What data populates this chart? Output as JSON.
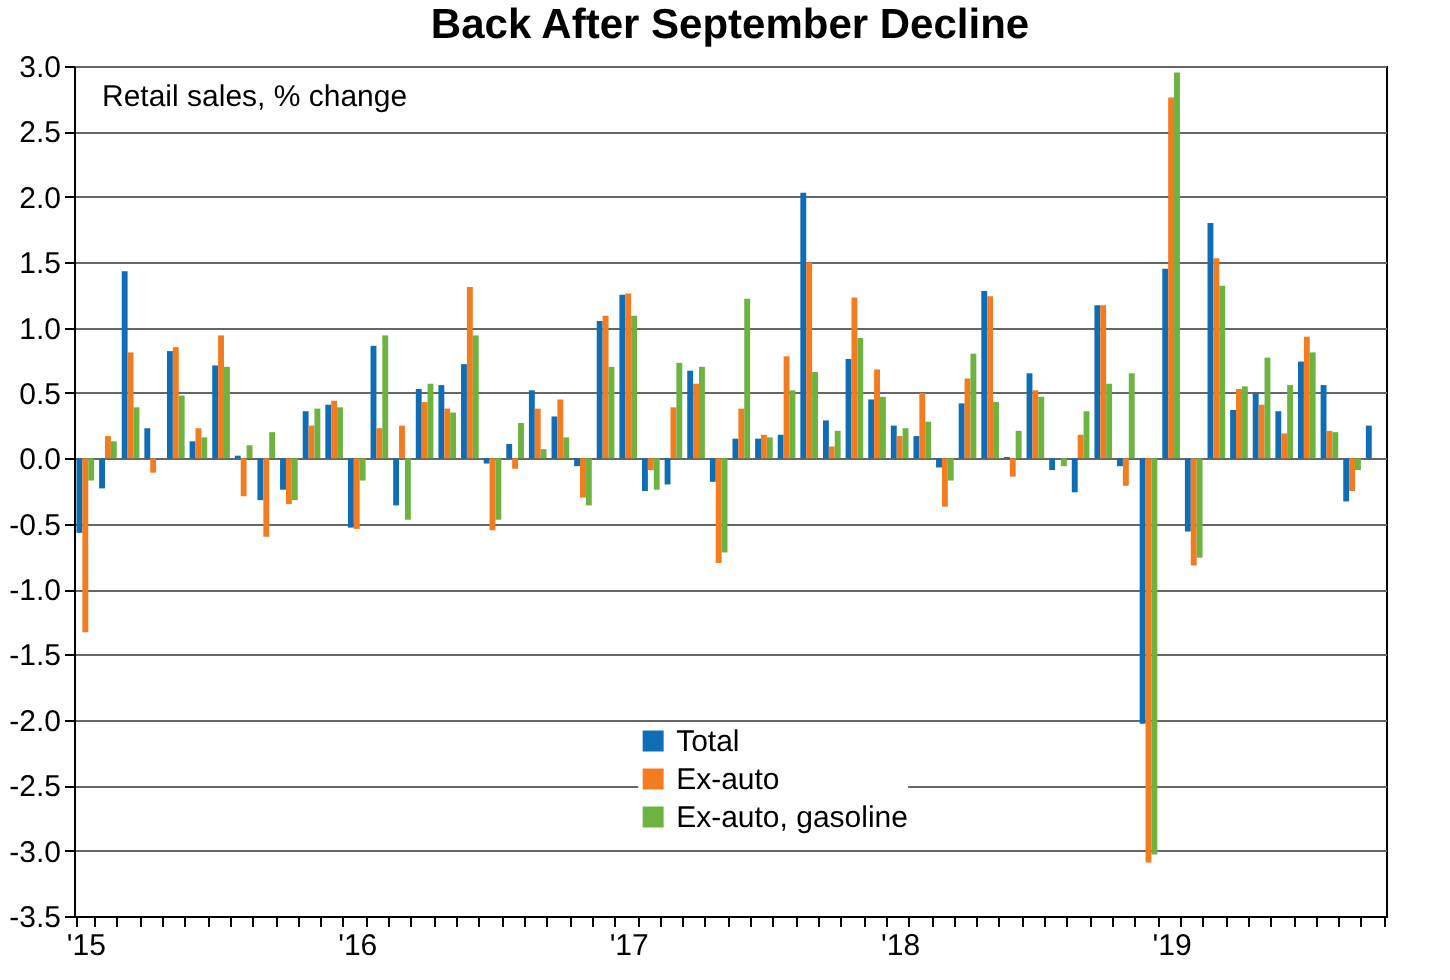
{
  "chart_data": {
    "type": "bar",
    "title": "Back After September Decline",
    "annotations": [
      "Retail sales, % change"
    ],
    "categories": [
      "'15",
      null,
      null,
      null,
      null,
      null,
      null,
      null,
      null,
      null,
      null,
      null,
      "'16",
      null,
      null,
      null,
      null,
      null,
      null,
      null,
      null,
      null,
      null,
      null,
      "'17",
      null,
      null,
      null,
      null,
      null,
      null,
      null,
      null,
      null,
      null,
      null,
      "'18",
      null,
      null,
      null,
      null,
      null,
      null,
      null,
      null,
      null,
      null,
      null,
      "'19",
      null,
      null,
      null,
      null,
      null,
      null,
      null,
      null,
      null
    ],
    "series": [
      {
        "name": "Total",
        "color": "#0f6db5",
        "values": [
          -0.57,
          -0.23,
          1.43,
          0.23,
          0.82,
          0.13,
          0.71,
          0.02,
          -0.32,
          -0.24,
          0.36,
          0.41,
          -0.53,
          0.86,
          -0.36,
          0.53,
          0.56,
          0.72,
          -0.04,
          0.11,
          0.52,
          0.32,
          -0.06,
          1.05,
          1.25,
          -0.25,
          -0.2,
          0.67,
          -0.18,
          0.15,
          0.15,
          0.18,
          2.03,
          0.29,
          0.76,
          0.45,
          0.25,
          0.17,
          -0.07,
          0.42,
          1.28,
          0.01,
          0.65,
          -0.09,
          -0.26,
          1.17,
          -0.06,
          -2.03,
          1.45,
          -0.56,
          1.8,
          0.37,
          0.5,
          0.36,
          0.74,
          0.56,
          -0.33,
          0.25
        ]
      },
      {
        "name": "Ex-auto",
        "color": "#f47c20",
        "values": [
          -1.33,
          0.17,
          0.81,
          -0.11,
          0.85,
          0.23,
          0.94,
          -0.29,
          -0.6,
          -0.35,
          0.25,
          0.44,
          -0.54,
          0.23,
          0.25,
          0.43,
          0.38,
          1.31,
          -0.55,
          -0.08,
          0.38,
          0.45,
          -0.3,
          1.09,
          1.26,
          -0.09,
          0.39,
          0.57,
          -0.8,
          0.38,
          0.18,
          0.78,
          1.5,
          0.09,
          1.23,
          0.68,
          0.17,
          0.5,
          -0.37,
          0.61,
          1.24,
          -0.14,
          0.52,
          0,
          0.18,
          1.17,
          -0.21,
          -3.09,
          2.76,
          -0.82,
          1.53,
          0.53,
          0.41,
          0.19,
          0.93,
          0.21,
          -0.25,
          null
        ]
      },
      {
        "name": "Ex-auto, gasoline",
        "color": "#6db33f",
        "values": [
          -0.17,
          0.13,
          0.39,
          0,
          0.48,
          0.16,
          0.7,
          0.1,
          0.2,
          -0.32,
          0.38,
          0.39,
          -0.17,
          0.94,
          -0.47,
          0.57,
          0.35,
          0.94,
          -0.47,
          0.27,
          0.07,
          0.16,
          -0.36,
          0.7,
          1.09,
          -0.24,
          0.73,
          0.7,
          -0.72,
          1.22,
          0.16,
          0.52,
          0.66,
          0.21,
          0.92,
          0.47,
          0.23,
          0.28,
          -0.17,
          0.8,
          0.43,
          0.21,
          0.47,
          -0.06,
          0.36,
          0.57,
          0.65,
          -3.03,
          2.95,
          -0.76,
          1.32,
          0.55,
          0.77,
          0.56,
          0.81,
          0.2,
          -0.09,
          null
        ]
      }
    ],
    "ylim": [
      -3.5,
      3
    ],
    "yticks": [
      {
        "value": -3.5,
        "label": "-3.5"
      },
      {
        "value": -3,
        "label": "-3.0"
      },
      {
        "value": -2.5,
        "label": "-2.5"
      },
      {
        "value": -2,
        "label": "-2.0"
      },
      {
        "value": -1.5,
        "label": "-1.5"
      },
      {
        "value": -1,
        "label": "-1.0"
      },
      {
        "value": -0.5,
        "label": "-0.5"
      },
      {
        "value": 0,
        "label": "0.0"
      },
      {
        "value": 0.5,
        "label": "0.5"
      },
      {
        "value": 1,
        "label": "1.0"
      },
      {
        "value": 1.5,
        "label": "1.5"
      },
      {
        "value": 2,
        "label": "2.0"
      },
      {
        "value": 2.5,
        "label": "2.5"
      },
      {
        "value": 3,
        "label": "3.0"
      }
    ],
    "grid": "y",
    "legend": "bottom"
  }
}
